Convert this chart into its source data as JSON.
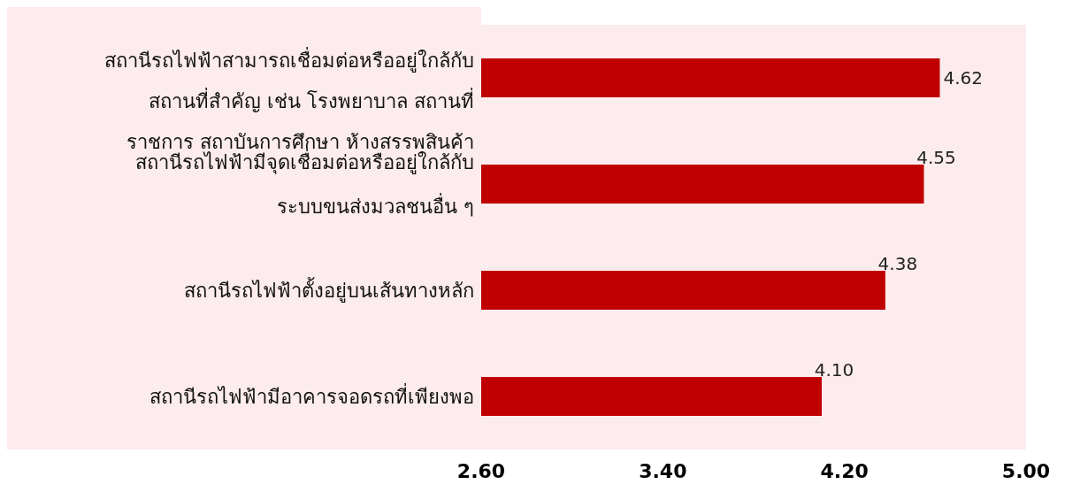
{
  "chart_data": {
    "type": "bar",
    "orientation": "horizontal",
    "categories": [
      "สถานีรถไฟฟ้าสามารถเชื่อมต่อหรืออยู่ใกล้กับ\nสถานที่สำคัญ เช่น โรงพยาบาล สถานที่\nราชการ สถาบันการศึกษา ห้างสรรพสินค้า",
      "สถานีรถไฟฟ้ามีจุดเชื่อมต่อหรืออยู่ใกล้กับ\nระบบขนส่งมวลชนอื่น ๆ",
      "สถานีรถไฟฟ้าตั้งอยู่บนเส้นทางหลัก",
      "สถานีรถไฟฟ้ามีอาคารจอดรถที่เพียงพอ"
    ],
    "values": [
      4.62,
      4.55,
      4.38,
      4.1
    ],
    "value_labels": [
      "4.62",
      "4.55",
      "4.38",
      "4.10"
    ],
    "color": "#c00000",
    "xlim": [
      2.6,
      5.0
    ],
    "xticks": [
      {
        "value": 2.6,
        "label": "2.60"
      },
      {
        "value": 3.4,
        "label": "3.40"
      },
      {
        "value": 4.2,
        "label": "4.20"
      },
      {
        "value": 5.0,
        "label": "5.00"
      }
    ],
    "grid": false,
    "legend": false
  }
}
